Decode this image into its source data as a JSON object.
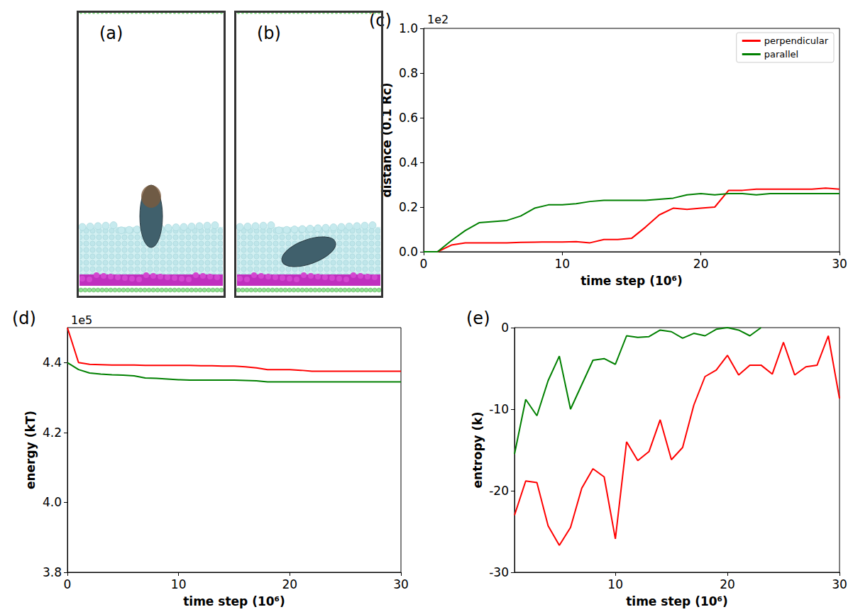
{
  "snapshots": [
    {
      "label": "(a)"
    },
    {
      "label": "(b)"
    }
  ],
  "chart_data": [
    {
      "type": "line",
      "title": "(c)",
      "annotation": "1e2",
      "x_label": "time step (10⁶)",
      "y_label": "distance (0.1 Rc)",
      "x": [
        0,
        1,
        2,
        3,
        4,
        5,
        6,
        7,
        8,
        9,
        10,
        11,
        12,
        13,
        14,
        15,
        16,
        17,
        18,
        19,
        20,
        21,
        22,
        23,
        24,
        25,
        26,
        27,
        28,
        29,
        30
      ],
      "series": [
        {
          "name": "perpendicular",
          "color": "#ff0000",
          "values": [
            0,
            0,
            0.03,
            0.04,
            0.04,
            0.04,
            0.04,
            0.042,
            0.043,
            0.044,
            0.044,
            0.045,
            0.04,
            0.055,
            0.055,
            0.06,
            0.11,
            0.165,
            0.195,
            0.19,
            0.195,
            0.2,
            0.275,
            0.275,
            0.28,
            0.28,
            0.28,
            0.28,
            0.28,
            0.285,
            0.28
          ]
        },
        {
          "name": "parallel",
          "color": "#008000",
          "values": [
            0,
            0,
            0.05,
            0.095,
            0.13,
            0.135,
            0.14,
            0.16,
            0.195,
            0.21,
            0.21,
            0.215,
            0.225,
            0.23,
            0.23,
            0.23,
            0.23,
            0.235,
            0.24,
            0.255,
            0.26,
            0.255,
            0.26,
            0.26,
            0.255,
            0.26,
            0.26,
            0.26,
            0.26,
            0.26,
            0.26
          ]
        }
      ],
      "xlim": [
        0,
        30
      ],
      "xticks": [
        0,
        10,
        20,
        30
      ],
      "ylim": [
        0,
        1
      ],
      "yticks": [
        {
          "value": 0,
          "label": "0.0"
        },
        0.2,
        0.4,
        0.6,
        0.8,
        {
          "value": 1,
          "label": "1.0"
        }
      ],
      "grid": false,
      "legend": "upper right"
    },
    {
      "type": "line",
      "title": "(d)",
      "annotation": "1e5",
      "x_label": "time step (10⁶)",
      "y_label": "energy (kT)",
      "x": [
        0,
        1,
        2,
        3,
        4,
        5,
        6,
        7,
        8,
        9,
        10,
        11,
        12,
        13,
        14,
        15,
        16,
        17,
        18,
        19,
        20,
        21,
        22,
        23,
        24,
        25,
        26,
        27,
        28,
        29,
        30
      ],
      "series": [
        {
          "name": "perpendicular",
          "color": "#ff0000",
          "values": [
            4.5,
            4.4,
            4.395,
            4.394,
            4.393,
            4.393,
            4.393,
            4.392,
            4.392,
            4.392,
            4.392,
            4.392,
            4.391,
            4.391,
            4.39,
            4.39,
            4.388,
            4.385,
            4.38,
            4.38,
            4.38,
            4.378,
            4.375,
            4.375,
            4.375,
            4.375,
            4.375,
            4.375,
            4.375,
            4.375,
            4.375
          ]
        },
        {
          "name": "parallel",
          "color": "#008000",
          "values": [
            4.4,
            4.38,
            4.37,
            4.367,
            4.365,
            4.364,
            4.362,
            4.356,
            4.355,
            4.353,
            4.351,
            4.35,
            4.35,
            4.35,
            4.35,
            4.35,
            4.349,
            4.348,
            4.345,
            4.345,
            4.345,
            4.345,
            4.345,
            4.345,
            4.345,
            4.345,
            4.345,
            4.345,
            4.345,
            4.345,
            4.345
          ]
        }
      ],
      "xlim": [
        0,
        30
      ],
      "xticks": [
        0,
        10,
        20,
        30
      ],
      "ylim": [
        3.8,
        4.5
      ],
      "yticks": [
        3.8,
        {
          "value": 4,
          "label": "4.0"
        },
        4.2,
        4.4
      ],
      "grid": false
    },
    {
      "type": "line",
      "title": "(e)",
      "x_label": "time step (10⁶)",
      "y_label": "entropy (k)",
      "x": [
        1,
        2,
        3,
        4,
        5,
        6,
        7,
        8,
        9,
        10,
        11,
        12,
        13,
        14,
        15,
        16,
        17,
        18,
        19,
        20,
        21,
        22,
        23,
        24,
        25,
        26,
        27,
        28,
        29,
        30
      ],
      "series": [
        {
          "name": "perpendicular",
          "color": "#ff0000",
          "values": [
            -23,
            -18.8,
            -19,
            -24.3,
            -26.7,
            -24.5,
            -19.7,
            -17.3,
            -18.3,
            -25.9,
            -14,
            -16.3,
            -15.2,
            -11.3,
            -16.2,
            -14.7,
            -9.5,
            -6,
            -5.2,
            -3.4,
            -5.8,
            -4.6,
            -4.6,
            -5.7,
            -1.8,
            -5.8,
            -4.8,
            -4.6,
            -1,
            -8.7
          ]
        },
        {
          "name": "parallel",
          "color": "#008000",
          "values": [
            -15.5,
            -8.8,
            -10.8,
            -6.5,
            -3.5,
            -10,
            -7,
            -4,
            -3.8,
            -4.5,
            -1,
            -1.2,
            -1.1,
            -0.3,
            -0.5,
            -1.3,
            -0.7,
            -1,
            -0.2,
            0,
            -0.3,
            -1,
            0,
            null,
            null,
            null,
            null,
            null,
            null,
            null
          ]
        }
      ],
      "xlim": [
        1,
        30
      ],
      "xticks": [
        10,
        20,
        30
      ],
      "ylim": [
        -30,
        0
      ],
      "yticks": [
        -30,
        -20,
        -10,
        0
      ],
      "grid": false
    }
  ]
}
